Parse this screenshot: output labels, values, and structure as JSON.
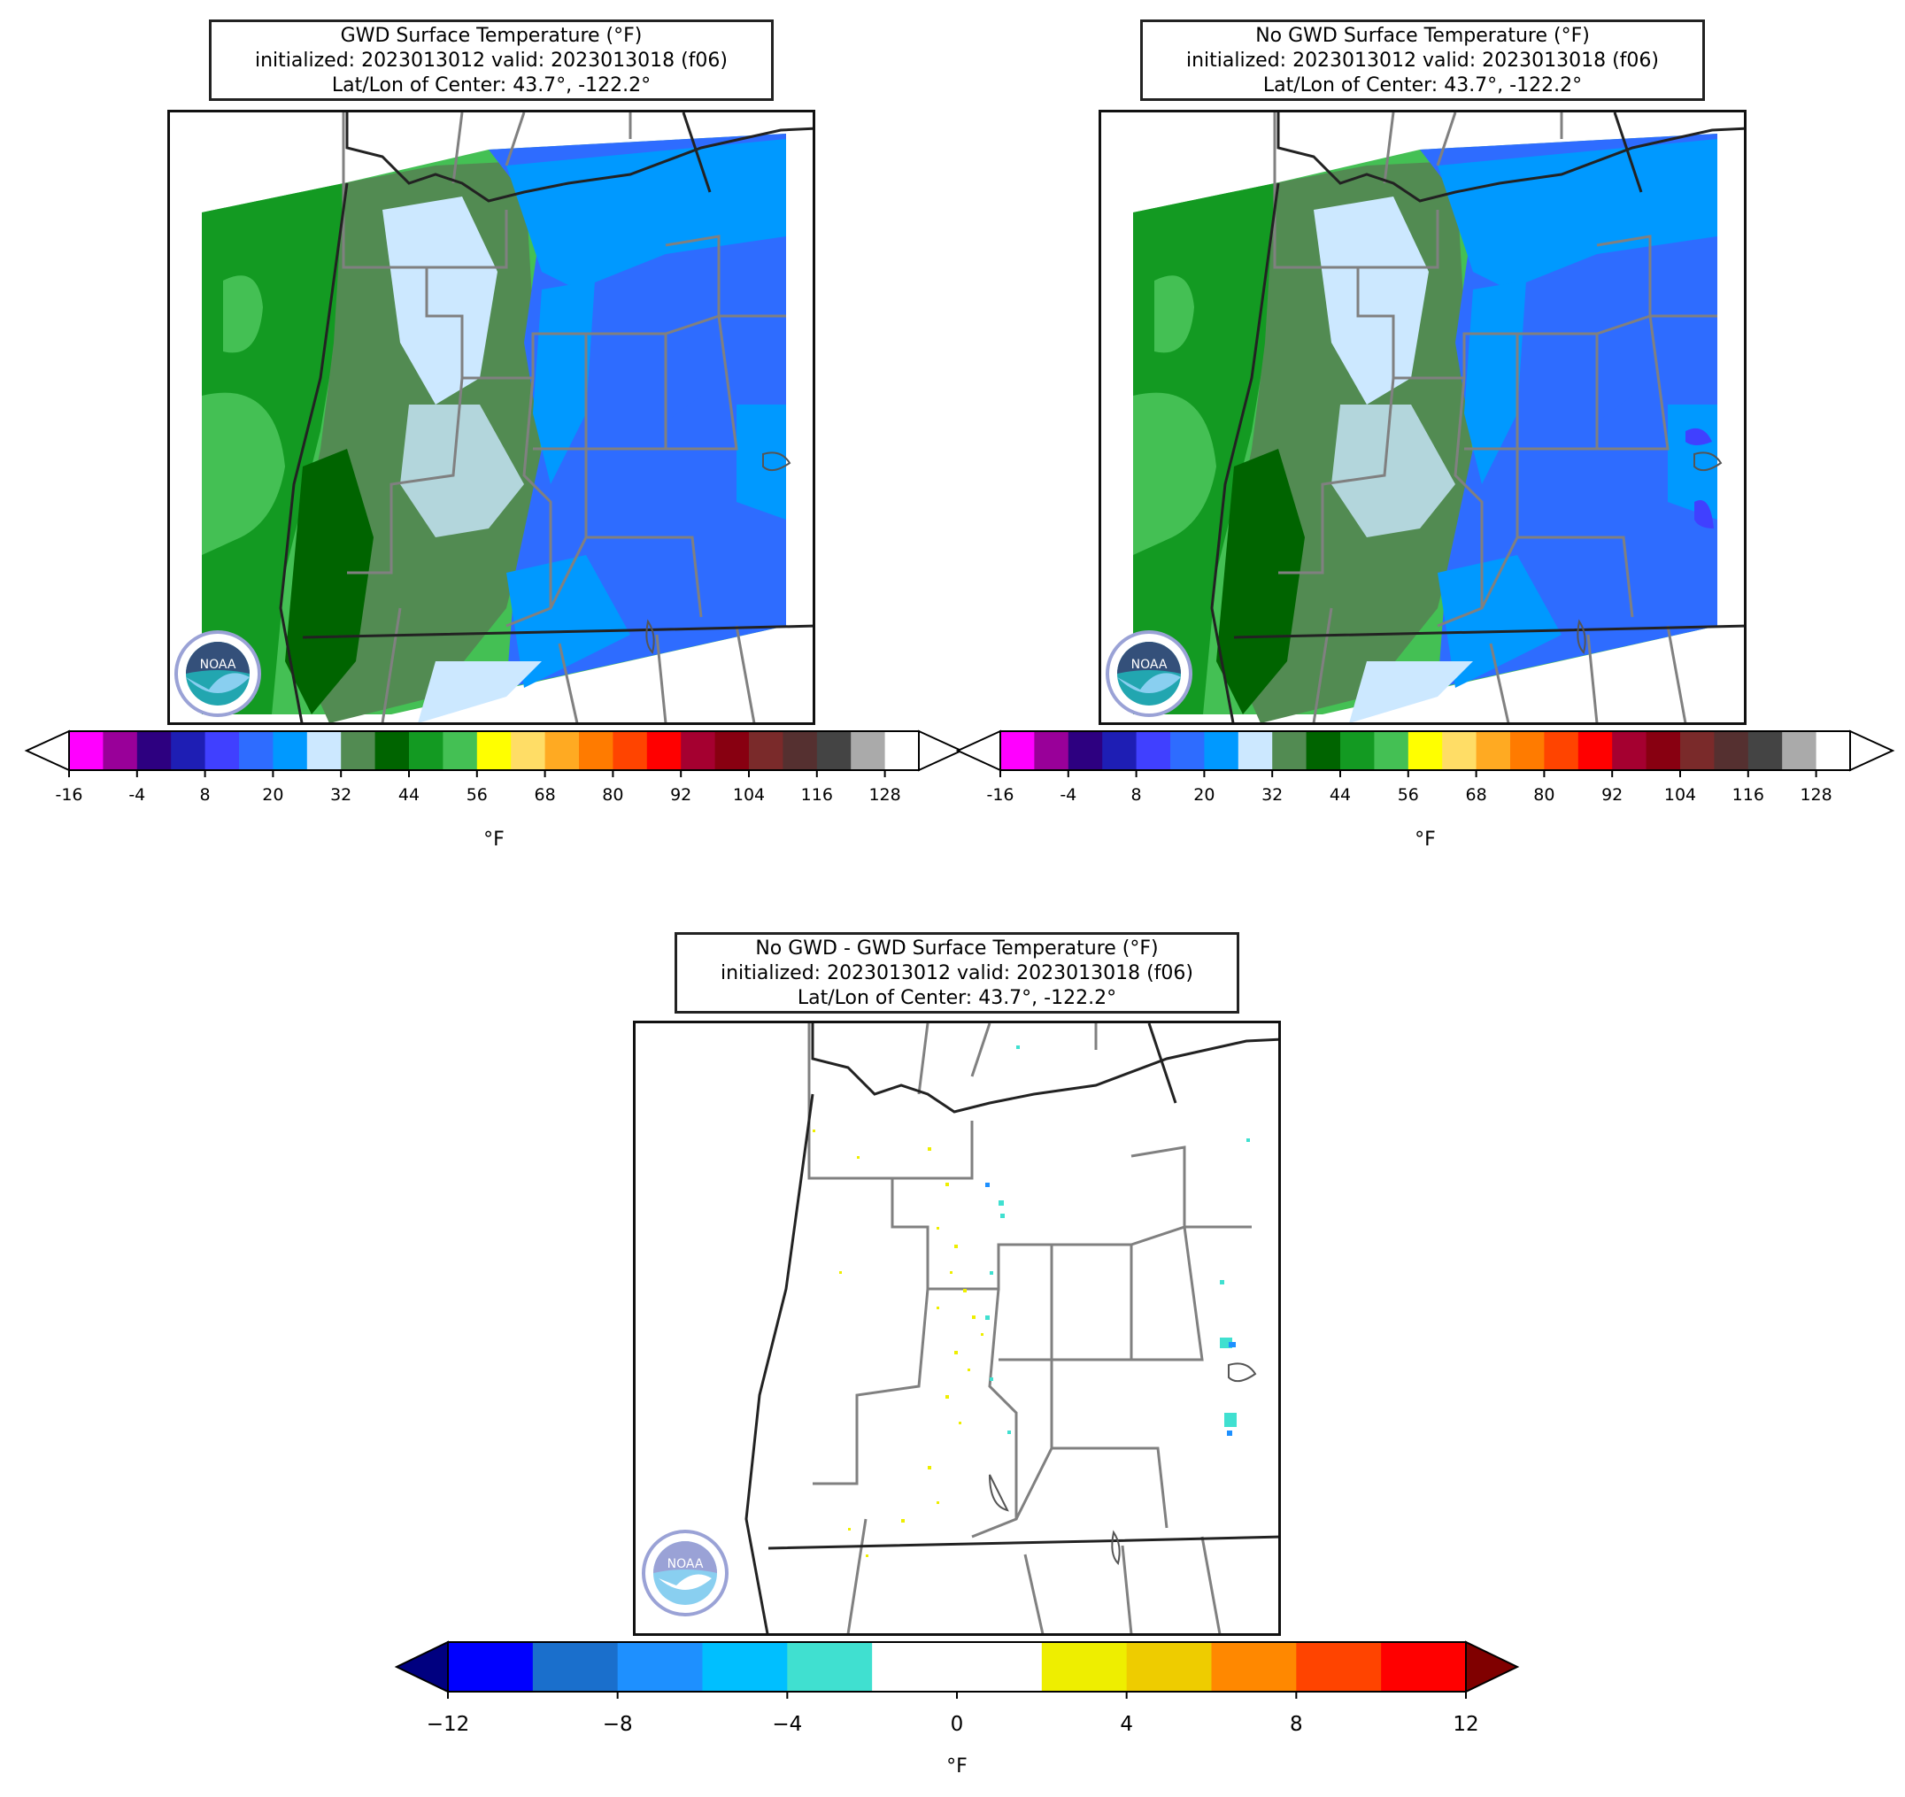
{
  "panels": [
    {
      "id": "gwd",
      "title_lines": [
        "GWD Surface Temperature (°F)",
        "initialized: 2023013012 valid: 2023013018 (f06)",
        "Lat/Lon of Center: 43.7°, -122.2°"
      ]
    },
    {
      "id": "nogwd",
      "title_lines": [
        "No GWD Surface Temperature (°F)",
        "initialized: 2023013012 valid: 2023013018 (f06)",
        "Lat/Lon of Center: 43.7°, -122.2°"
      ]
    },
    {
      "id": "diff",
      "title_lines": [
        "No GWD - GWD Surface Temperature (°F)",
        "initialized: 2023013012 valid: 2023013018 (f06)",
        "Lat/Lon of Center: 43.7°, -122.2°"
      ]
    }
  ],
  "temp_colorbar": {
    "tick_labels": [
      "-16",
      "-4",
      "8",
      "20",
      "32",
      "44",
      "56",
      "68",
      "80",
      "92",
      "104",
      "116",
      "128"
    ],
    "unit_label": "°F",
    "colors": [
      "#ff00ff",
      "#990099",
      "#2d0080",
      "#1e1eb4",
      "#4040ff",
      "#2e6cff",
      "#0099ff",
      "#cce8ff",
      "#528b52",
      "#006400",
      "#139a22",
      "#44c054",
      "#ffff00",
      "#ffdd66",
      "#ffaa22",
      "#ff7b00",
      "#ff4400",
      "#ff0000",
      "#a50030",
      "#880011",
      "#7a2a2a",
      "#553030",
      "#444444",
      "#aaaaaa",
      "#ffffff"
    ],
    "under_color": "#ffffff",
    "over_color": "#ffffff"
  },
  "diff_colorbar": {
    "tick_labels": [
      "−12",
      "−8",
      "−4",
      "0",
      "4",
      "8",
      "12"
    ],
    "unit_label": "°F",
    "colors": [
      "#0000ff",
      "#1a6fcc",
      "#1e90ff",
      "#00bfff",
      "#40e0d0",
      "#ffffff",
      "#ffffff",
      "#eeee00",
      "#eecc00",
      "#ff8800",
      "#ff4400",
      "#ff0000"
    ],
    "under_color": "#000080",
    "over_color": "#800000"
  },
  "logo": {
    "text": "NOAA"
  }
}
